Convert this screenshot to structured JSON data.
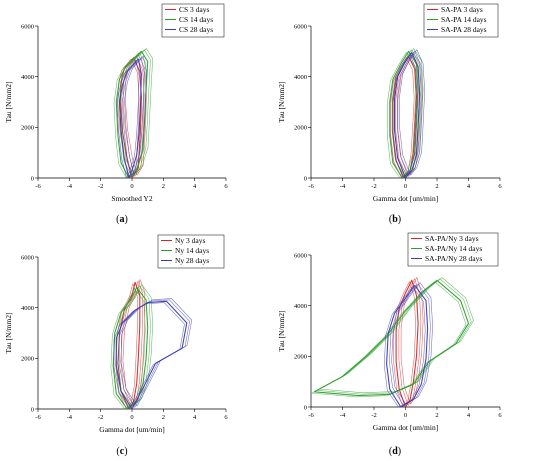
{
  "chart_data": [
    {
      "type": "line",
      "panel": "(a)",
      "xlabel": "Smoothed Y2",
      "ylabel": "Tau [N/mm2]",
      "xlim": [
        -6,
        6
      ],
      "ylim": [
        0,
        6000
      ],
      "xticks": [
        -6,
        -4,
        -2,
        0,
        2,
        4,
        6
      ],
      "yticks": [
        0,
        2000,
        4000,
        6000
      ],
      "legend_position": "top-right",
      "series": [
        {
          "name": "CS 3 days",
          "color": "#d62728",
          "x": [
            0.0,
            -0.3,
            -0.6,
            -0.75,
            -0.7,
            -0.5,
            0.1,
            0.5,
            0.6,
            0.55,
            0.45,
            0.4,
            0.0
          ],
          "y": [
            0,
            700,
            1800,
            3000,
            3800,
            4300,
            4750,
            4200,
            3200,
            2000,
            1000,
            400,
            0
          ]
        },
        {
          "name": "CS 14 days",
          "color": "#2ca02c",
          "x": [
            -0.2,
            -0.7,
            -0.9,
            -1.0,
            -0.8,
            -0.4,
            0.6,
            1.0,
            0.9,
            0.8,
            0.7,
            0.3,
            -0.2
          ],
          "y": [
            0,
            600,
            1700,
            3000,
            3900,
            4400,
            5000,
            4600,
            3500,
            2200,
            1100,
            300,
            0
          ]
        },
        {
          "name": "CS 28 days",
          "color": "#3b3bb3",
          "x": [
            -0.2,
            -0.5,
            -0.7,
            -0.8,
            -0.6,
            -0.3,
            0.4,
            0.6,
            0.55,
            0.45,
            0.3,
            0.0,
            -0.2
          ],
          "y": [
            0,
            800,
            1900,
            3000,
            3700,
            4200,
            4700,
            4100,
            3000,
            1800,
            900,
            300,
            0
          ]
        }
      ]
    },
    {
      "type": "line",
      "panel": "(b)",
      "xlabel": "Gamma dot [um/min]",
      "ylabel": "Tau [N/mm2]",
      "xlim": [
        -6,
        6
      ],
      "ylim": [
        0,
        6000
      ],
      "xticks": [
        -6,
        -4,
        -2,
        0,
        2,
        4,
        6
      ],
      "yticks": [
        0,
        2000,
        4000,
        6000
      ],
      "legend_position": "top-right",
      "series": [
        {
          "name": "SA-PA 3 days",
          "color": "#d62728",
          "x": [
            -0.1,
            -0.6,
            -0.8,
            -0.8,
            -0.6,
            -0.2,
            0.2,
            0.6,
            0.7,
            0.6,
            0.5,
            0.3,
            -0.1
          ],
          "y": [
            0,
            700,
            1800,
            3000,
            3900,
            4400,
            4800,
            4300,
            3200,
            2000,
            1000,
            300,
            0
          ]
        },
        {
          "name": "SA-PA 14 days",
          "color": "#2ca02c",
          "x": [
            -0.2,
            -0.8,
            -1.0,
            -1.0,
            -0.8,
            -0.3,
            0.2,
            0.7,
            0.8,
            0.7,
            0.6,
            0.3,
            -0.2
          ],
          "y": [
            0,
            600,
            1700,
            3000,
            3900,
            4500,
            5000,
            4500,
            3400,
            2100,
            1000,
            300,
            0
          ]
        },
        {
          "name": "SA-PA 28 days",
          "color": "#3b3bb3",
          "x": [
            0.0,
            -0.5,
            -0.7,
            -0.7,
            -0.5,
            -0.1,
            0.4,
            0.8,
            0.9,
            0.8,
            0.7,
            0.4,
            0.0
          ],
          "y": [
            0,
            800,
            1900,
            3100,
            4000,
            4500,
            4950,
            4400,
            3300,
            2000,
            900,
            300,
            0
          ]
        }
      ]
    },
    {
      "type": "line",
      "panel": "(c)",
      "xlabel": "Gamma dot [um/min]",
      "ylabel": "Tau [N/mm2]",
      "xlim": [
        -6,
        6
      ],
      "ylim": [
        0,
        6000
      ],
      "xticks": [
        -6,
        -4,
        -2,
        0,
        2,
        4,
        6
      ],
      "yticks": [
        0,
        2000,
        4000,
        6000
      ],
      "legend_position": "top-right",
      "series": [
        {
          "name": "Ny 3 days",
          "color": "#d62728",
          "x": [
            -0.2,
            -0.7,
            -0.9,
            -0.8,
            -0.5,
            0.0,
            0.2,
            0.5,
            0.5,
            0.4,
            0.3,
            0.1,
            -0.2
          ],
          "y": [
            0,
            700,
            1800,
            3000,
            3900,
            4500,
            5000,
            4500,
            3300,
            2000,
            1000,
            300,
            0
          ]
        },
        {
          "name": "Ny 14 days",
          "color": "#2ca02c",
          "x": [
            -0.3,
            -1.0,
            -1.2,
            -1.1,
            -0.7,
            -0.1,
            0.3,
            0.9,
            1.0,
            0.9,
            0.7,
            0.3,
            -0.3
          ],
          "y": [
            0,
            600,
            1700,
            3000,
            3800,
            4300,
            4800,
            4300,
            3200,
            2000,
            1000,
            300,
            0
          ]
        },
        {
          "name": "Ny 28 days",
          "color": "#3b3bb3",
          "x": [
            0.0,
            -0.7,
            -1.0,
            -1.0,
            -0.6,
            0.2,
            1.0,
            2.2,
            3.5,
            3.2,
            1.5,
            0.6,
            0.0
          ],
          "y": [
            0,
            700,
            1700,
            2800,
            3400,
            3900,
            4200,
            4250,
            3400,
            2400,
            1800,
            700,
            0
          ]
        }
      ]
    },
    {
      "type": "line",
      "panel": "(d)",
      "xlabel": "Gamma dot [um/min]",
      "ylabel": "Tau [N/mm2]",
      "xlim": [
        -6,
        6
      ],
      "ylim": [
        0,
        6000
      ],
      "xticks": [
        -6,
        -4,
        -2,
        0,
        2,
        4,
        6
      ],
      "yticks": [
        0,
        2000,
        4000,
        6000
      ],
      "legend_position": "top-right",
      "series": [
        {
          "name": "SA-PA/Ny 3 days",
          "color": "#d62728",
          "x": [
            0.0,
            -0.4,
            -0.6,
            -0.6,
            -0.4,
            0.0,
            0.4,
            0.7,
            0.8,
            0.7,
            0.5,
            0.3,
            0.0
          ],
          "y": [
            0,
            700,
            1800,
            3000,
            3900,
            4500,
            5000,
            4400,
            3300,
            2000,
            1000,
            300,
            0
          ]
        },
        {
          "name": "SA-PA/Ny 14 days",
          "color": "#2ca02c",
          "x": [
            -5.8,
            -4.0,
            -2.5,
            -1.2,
            0.0,
            1.2,
            2.0,
            3.5,
            4.0,
            3.2,
            1.5,
            0.5,
            -1.0,
            -3.0,
            -5.8
          ],
          "y": [
            600,
            1200,
            2000,
            2800,
            3800,
            4600,
            5000,
            4200,
            3300,
            2500,
            1800,
            900,
            500,
            450,
            600
          ]
        },
        {
          "name": "SA-PA/Ny 28 days",
          "color": "#3b3bb3",
          "x": [
            -0.3,
            -1.0,
            -1.2,
            -1.1,
            -0.7,
            0.0,
            0.6,
            1.3,
            1.4,
            1.3,
            1.0,
            0.5,
            -0.3
          ],
          "y": [
            0,
            700,
            1700,
            2900,
            3700,
            4300,
            4800,
            4200,
            3100,
            1900,
            900,
            300,
            0
          ]
        }
      ]
    }
  ]
}
